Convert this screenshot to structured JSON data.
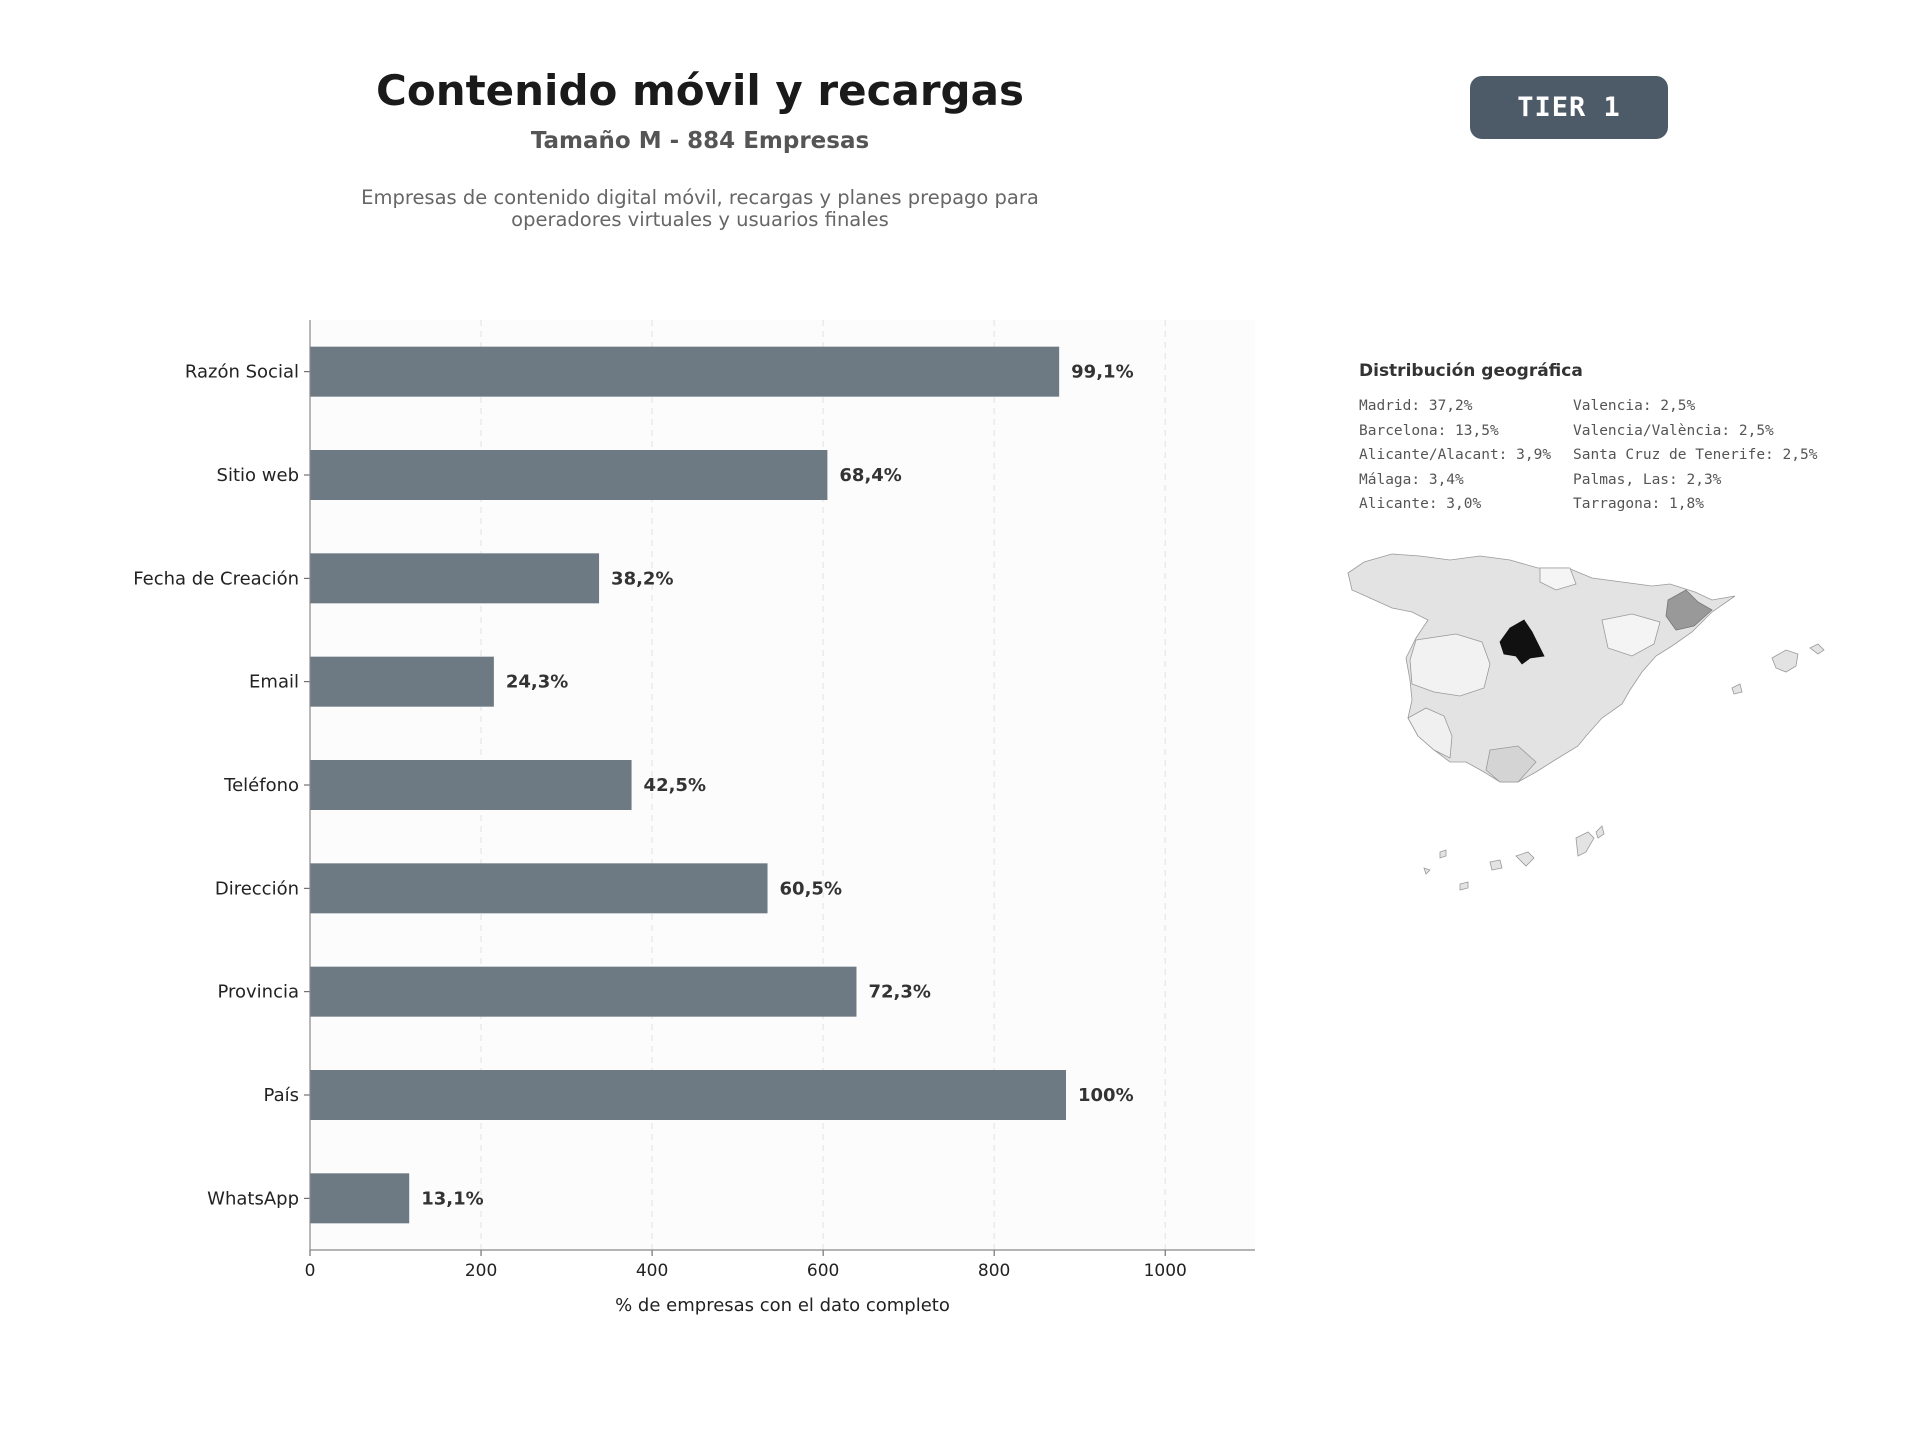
{
  "header": {
    "title": "Contenido móvil y recargas",
    "subtitle": "Tamaño M - 884 Empresas",
    "description_lines": [
      "Empresas de contenido digital móvil, recargas y planes prepago para",
      "operadores virtuales y usuarios finales"
    ],
    "tier_badge": "TIER 1"
  },
  "chart_data": {
    "type": "bar",
    "orientation": "horizontal",
    "categories": [
      "Razón Social",
      "Sitio web",
      "Fecha de Creación",
      "Email",
      "Teléfono",
      "Dirección",
      "Provincia",
      "País",
      "WhatsApp"
    ],
    "values": [
      876,
      605,
      338,
      215,
      376,
      535,
      639,
      884,
      116
    ],
    "data_labels": [
      "99,1%",
      "68,4%",
      "38,2%",
      "24,3%",
      "42,5%",
      "60,5%",
      "72,3%",
      "100%",
      "13,1%"
    ],
    "xlabel": "% de empresas con el dato completo",
    "ylabel": "",
    "xlim": [
      0,
      1105
    ],
    "xticks": [
      0,
      200,
      400,
      600,
      800,
      1000
    ],
    "grid": "x-dashed",
    "bar_color": "#6e7a83"
  },
  "geo": {
    "title": "Distribución geográfica",
    "column_left": [
      "Madrid: 37,2%",
      "Barcelona: 13,5%",
      "Alicante/Alacant: 3,9%",
      "Málaga: 3,4%",
      "Alicante: 3,0%"
    ],
    "column_right": [
      "Valencia: 2,5%",
      "Valencia/València: 2,5%",
      "Santa Cruz de Tenerife: 2,5%",
      "Palmas, Las: 2,3%",
      "Tarragona: 1,8%"
    ],
    "map": {
      "type": "choropleth",
      "region": "Spain provinces",
      "highlight_colors": {
        "Madrid": "#111111",
        "Barcelona": "#999999",
        "default": "#e3e3e3"
      }
    }
  }
}
